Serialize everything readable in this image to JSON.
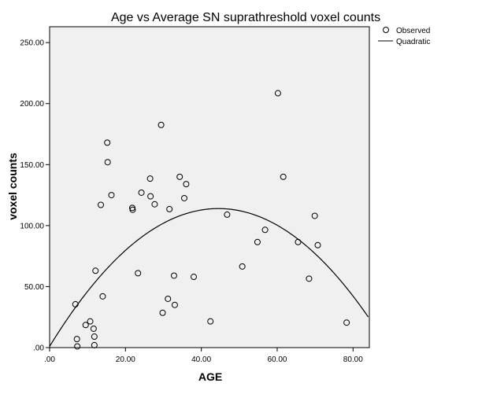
{
  "chart_data": {
    "type": "scatter",
    "title": "Age vs Average SN suprathreshold voxel counts",
    "xlabel": "AGE",
    "ylabel": "voxel counts",
    "xlim": [
      0,
      84
    ],
    "ylim": [
      0,
      260
    ],
    "x_ticks": [
      0,
      20,
      40,
      60,
      80
    ],
    "x_tick_labels": [
      ".00",
      "20.00",
      "40.00",
      "60.00",
      "80.00"
    ],
    "y_ticks": [
      0,
      50,
      100,
      150,
      200,
      250
    ],
    "y_tick_labels": [
      ".00",
      "50.00",
      "100.00",
      "150.00",
      "200.00",
      "250.00"
    ],
    "grid": false,
    "legend_position": "top-right",
    "colors": {
      "plot_background": "#f0f0f0",
      "marker": "#000000",
      "line": "#000000"
    },
    "series": [
      {
        "name": "Observed",
        "kind": "scatter",
        "x": [
          6.8,
          7.2,
          7.3,
          9.5,
          10.7,
          11.6,
          11.8,
          11.8,
          12.1,
          13.5,
          14.0,
          15.2,
          15.3,
          16.3,
          21.8,
          21.9,
          23.3,
          24.2,
          26.5,
          26.6,
          27.7,
          29.4,
          29.8,
          31.2,
          31.6,
          32.8,
          33.0,
          34.3,
          35.5,
          36.0,
          38.0,
          42.4,
          46.8,
          50.8,
          54.8,
          56.8,
          60.2,
          61.6,
          65.5,
          68.4,
          69.9,
          70.7,
          78.3
        ],
        "y": [
          35.5,
          7.0,
          1.0,
          18.5,
          21.5,
          15.5,
          9.0,
          2.0,
          63.0,
          117.0,
          42.0,
          168.0,
          152.0,
          125.0,
          114.5,
          113.0,
          61.0,
          127.0,
          138.5,
          124.0,
          117.5,
          182.5,
          28.5,
          40.0,
          113.5,
          59.0,
          35.0,
          140.0,
          122.5,
          134.0,
          58.0,
          21.5,
          109.0,
          66.5,
          86.5,
          96.5,
          208.5,
          140.0,
          86.5,
          56.5,
          108.0,
          84.0,
          20.5
        ]
      },
      {
        "name": "Quadratic",
        "kind": "line",
        "model": "quadratic fit",
        "coefficients": {
          "a": -0.057,
          "b": 5.075,
          "c": 1.0
        }
      }
    ]
  }
}
